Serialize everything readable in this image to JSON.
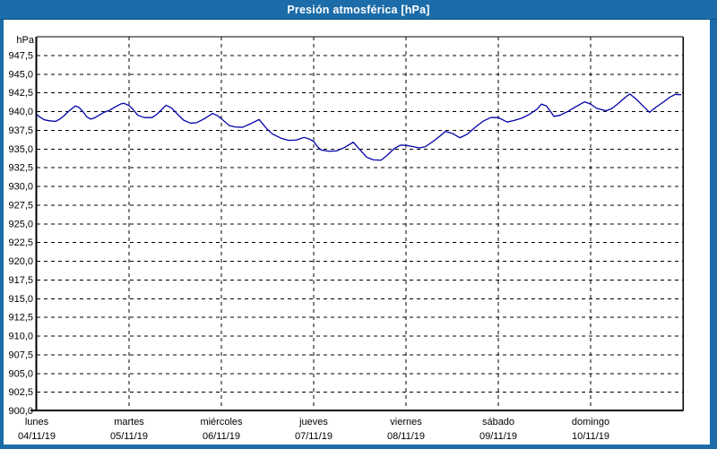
{
  "window": {
    "title": "Presión atmosférica [hPa]"
  },
  "colors": {
    "frame_blue": "#1B6CA8",
    "frame_blue_dark": "#12517E",
    "plot_background": "#FFFFFF",
    "grid_black": "#000000",
    "line_navy": "#0000AA"
  },
  "chart_data": {
    "type": "line",
    "title": "Presión atmosférica [hPa]",
    "ylabel_unit": "hPa",
    "ylim": [
      900,
      950
    ],
    "ytick_start": 900.0,
    "ytick_step": 2.5,
    "ytick_end": 947.5,
    "ytick_decimal_separator": ",",
    "grid": "dashed",
    "legend_position": "none",
    "x_total_hours": 168,
    "x_days": [
      {
        "name": "lunes",
        "date": "04/11/19"
      },
      {
        "name": "martes",
        "date": "05/11/19"
      },
      {
        "name": "miércoles",
        "date": "06/11/19"
      },
      {
        "name": "jueves",
        "date": "07/11/19"
      },
      {
        "name": "viernes",
        "date": "08/11/19"
      },
      {
        "name": "sábado",
        "date": "09/11/19"
      },
      {
        "name": "domingo",
        "date": "10/11/19"
      }
    ],
    "series": [
      {
        "name": "Presión atmosférica",
        "color": "#0000AA",
        "points": [
          [
            0,
            939.6
          ],
          [
            1,
            939.2
          ],
          [
            2,
            938.9
          ],
          [
            3.5,
            938.75
          ],
          [
            5,
            938.7
          ],
          [
            6,
            939.0
          ],
          [
            7,
            939.4
          ],
          [
            8,
            939.9
          ],
          [
            9,
            940.35
          ],
          [
            10,
            940.75
          ],
          [
            11,
            940.55
          ],
          [
            12,
            940.0
          ],
          [
            13,
            939.3
          ],
          [
            14,
            939.0
          ],
          [
            15,
            939.15
          ],
          [
            16,
            939.45
          ],
          [
            17.5,
            939.9
          ],
          [
            19,
            940.2
          ],
          [
            20.5,
            940.65
          ],
          [
            22,
            941.05
          ],
          [
            22.7,
            941.1
          ],
          [
            24,
            940.8
          ],
          [
            25,
            940.3
          ],
          [
            26.3,
            939.5
          ],
          [
            28,
            939.2
          ],
          [
            30,
            939.2
          ],
          [
            31,
            939.55
          ],
          [
            32,
            940.0
          ],
          [
            33.6,
            940.85
          ],
          [
            35,
            940.5
          ],
          [
            36.6,
            939.65
          ],
          [
            38.2,
            938.85
          ],
          [
            40,
            938.45
          ],
          [
            41.5,
            938.5
          ],
          [
            43.6,
            939.05
          ],
          [
            45.7,
            939.75
          ],
          [
            47,
            939.45
          ],
          [
            48,
            939.05
          ],
          [
            50,
            938.15
          ],
          [
            51.5,
            937.95
          ],
          [
            53.5,
            937.9
          ],
          [
            55.5,
            938.35
          ],
          [
            57.8,
            938.95
          ],
          [
            59.8,
            937.7
          ],
          [
            61.3,
            937.0
          ],
          [
            63.7,
            936.4
          ],
          [
            65.5,
            936.15
          ],
          [
            67.5,
            936.2
          ],
          [
            69.5,
            936.55
          ],
          [
            71,
            936.3
          ],
          [
            72,
            936.0
          ],
          [
            73,
            935.3
          ],
          [
            74,
            934.85
          ],
          [
            76,
            934.7
          ],
          [
            78,
            934.75
          ],
          [
            80,
            935.2
          ],
          [
            82.3,
            935.9
          ],
          [
            84,
            934.9
          ],
          [
            85.8,
            933.9
          ],
          [
            87.5,
            933.55
          ],
          [
            89.5,
            933.5
          ],
          [
            91,
            934.1
          ],
          [
            92.8,
            935.0
          ],
          [
            94.5,
            935.5
          ],
          [
            96,
            935.5
          ],
          [
            97.5,
            935.35
          ],
          [
            99.5,
            935.15
          ],
          [
            101,
            935.3
          ],
          [
            103,
            936.0
          ],
          [
            105,
            936.8
          ],
          [
            106.2,
            937.35
          ],
          [
            108,
            937.1
          ],
          [
            110,
            936.5
          ],
          [
            112,
            937.0
          ],
          [
            114,
            937.9
          ],
          [
            116,
            938.7
          ],
          [
            118,
            939.2
          ],
          [
            120,
            939.2
          ],
          [
            122.3,
            938.6
          ],
          [
            124,
            938.8
          ],
          [
            126,
            939.1
          ],
          [
            128,
            939.6
          ],
          [
            130,
            940.3
          ],
          [
            131.2,
            941.0
          ],
          [
            132.5,
            940.75
          ],
          [
            134.5,
            939.35
          ],
          [
            136,
            939.5
          ],
          [
            138,
            940.0
          ],
          [
            140,
            940.6
          ],
          [
            142.4,
            941.3
          ],
          [
            144,
            941.0
          ],
          [
            145.5,
            940.45
          ],
          [
            148,
            940.1
          ],
          [
            149.5,
            940.4
          ],
          [
            151,
            941.0
          ],
          [
            153,
            941.9
          ],
          [
            154.2,
            942.35
          ],
          [
            156,
            941.6
          ],
          [
            157.5,
            940.8
          ],
          [
            159.3,
            939.9
          ],
          [
            161,
            940.6
          ],
          [
            163,
            941.3
          ],
          [
            164.5,
            941.9
          ],
          [
            166,
            942.3
          ],
          [
            167.4,
            942.25
          ]
        ]
      }
    ]
  }
}
